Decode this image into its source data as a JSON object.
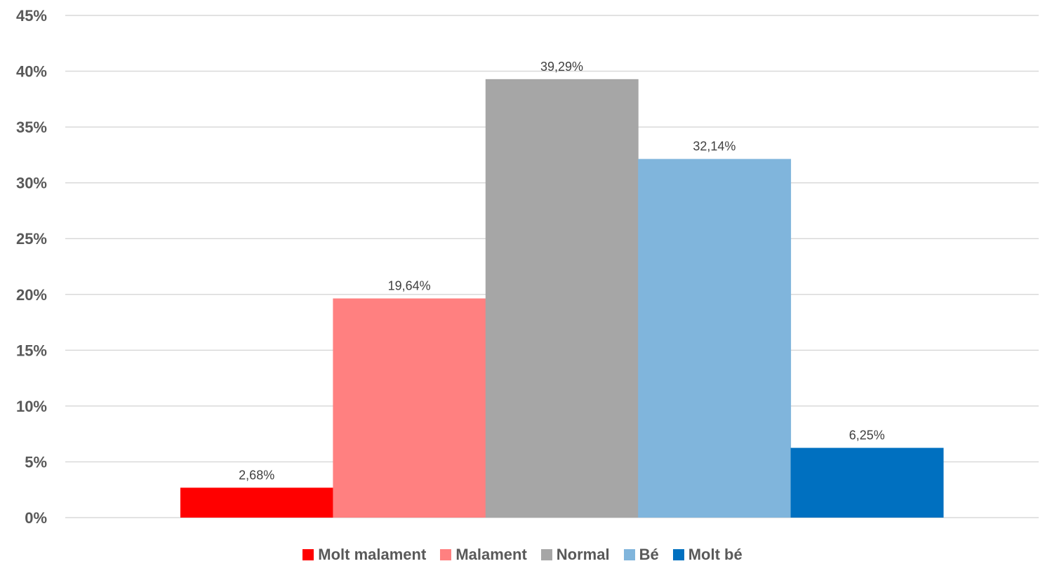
{
  "chart_data": {
    "type": "bar",
    "title": "",
    "xlabel": "",
    "ylabel": "",
    "ylim": [
      0,
      45
    ],
    "y_ticks": [
      "0%",
      "5%",
      "10%",
      "15%",
      "20%",
      "25%",
      "30%",
      "35%",
      "40%",
      "45%"
    ],
    "grid": true,
    "legend_position": "bottom",
    "series": [
      {
        "name": "Molt malament",
        "value": 2.68,
        "label": "2,68%",
        "color": "#ff0000"
      },
      {
        "name": "Malament",
        "value": 19.64,
        "label": "19,64%",
        "color": "#ff8080"
      },
      {
        "name": "Normal",
        "value": 39.29,
        "label": "39,29%",
        "color": "#a6a6a6"
      },
      {
        "name": "Bé",
        "value": 32.14,
        "label": "32,14%",
        "color": "#80b5dc"
      },
      {
        "name": "Molt bé",
        "value": 6.25,
        "label": "6,25%",
        "color": "#0070c0"
      }
    ]
  }
}
